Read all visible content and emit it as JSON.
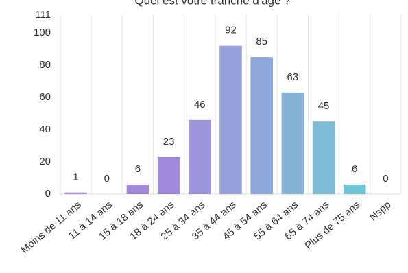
{
  "chart_data": {
    "type": "bar",
    "title": "Quel est votre tranche d'âge ?",
    "categories": [
      "Moins de 11 ans",
      "11 à 14 ans",
      "15 à 18 ans",
      "18 à 24 ans",
      "25 à 34 ans",
      "35 à 44 ans",
      "45 à 54 ans",
      "55 à 64 ans",
      "65 à 74 ans",
      "Plus de 75 ans",
      "Nspp"
    ],
    "values": [
      1,
      0,
      6,
      23,
      46,
      92,
      85,
      63,
      45,
      6,
      0
    ],
    "colors": [
      "#a98ad9",
      "#a68ad9",
      "#a189d8",
      "#9f8bd9",
      "#9c95dc",
      "#95a0db",
      "#8ea9d9",
      "#87b2d8",
      "#7dbbd7",
      "#6fc4d6",
      "#6bc8d6"
    ],
    "ylim": [
      0,
      111
    ],
    "yticks": [
      0,
      20,
      40,
      60,
      80,
      100,
      111
    ],
    "grid": true
  }
}
